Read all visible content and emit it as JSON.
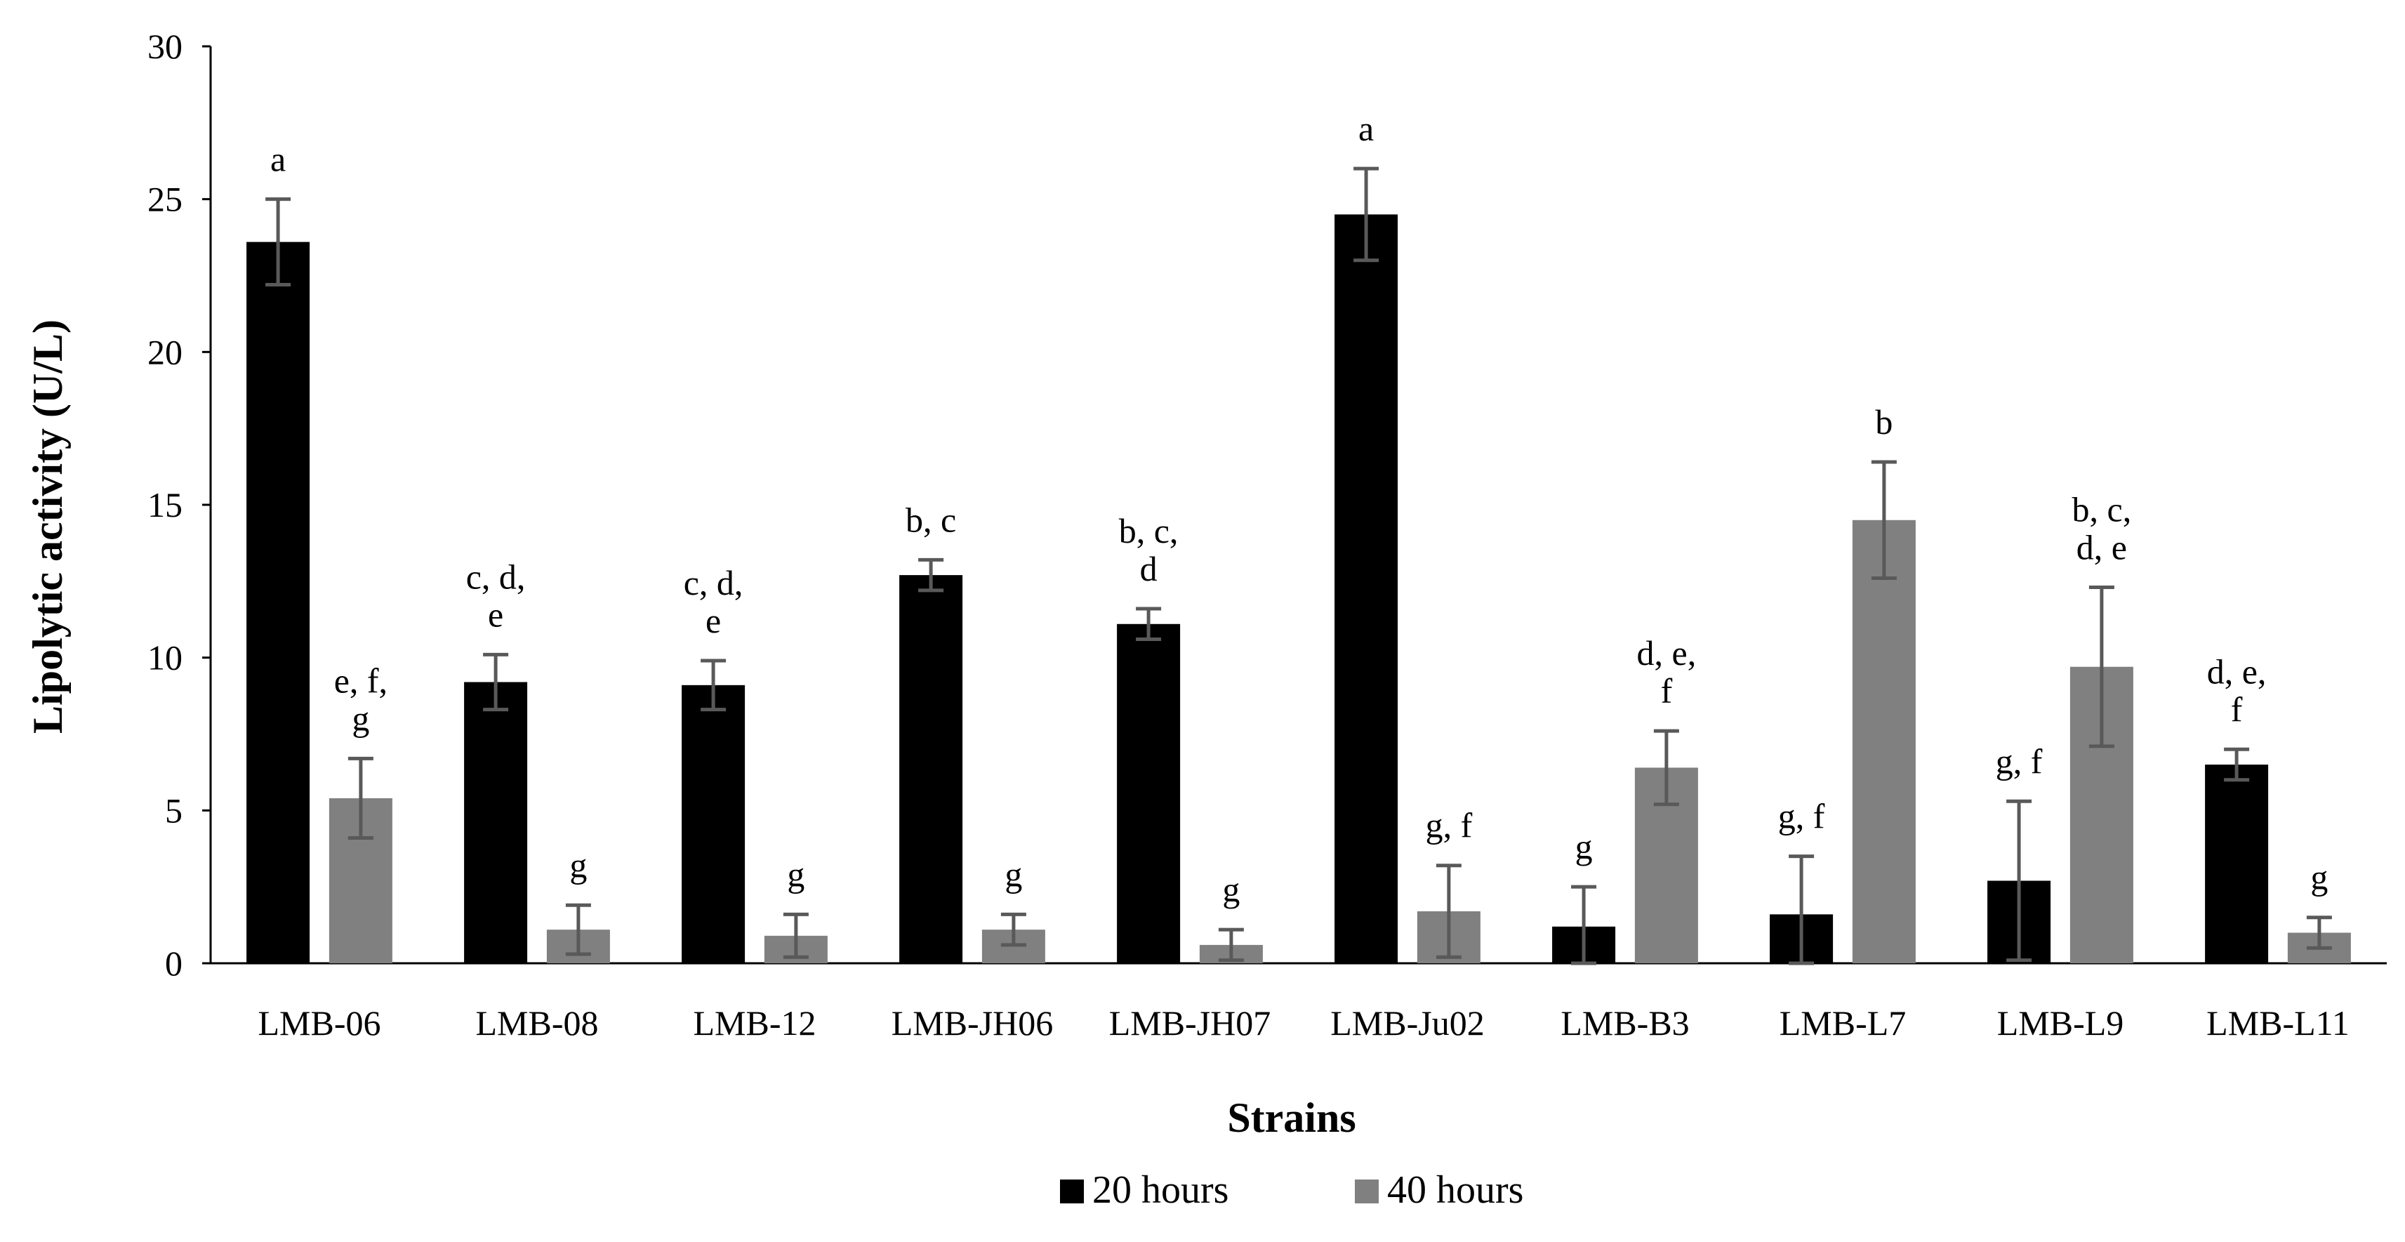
{
  "chart_data": {
    "type": "bar",
    "title": "",
    "xlabel": "Strains",
    "ylabel": "Lipolytic activity (U/L)",
    "ylim": [
      0,
      30
    ],
    "yticks": [
      "0",
      "5",
      "10",
      "15",
      "20",
      "25",
      "30"
    ],
    "grid": false,
    "legend_position": "bottom",
    "categories": [
      "LMB-06",
      "LMB-08",
      "LMB-12",
      "LMB-JH06",
      "LMB-JH07",
      "LMB-Ju02",
      "LMB-B3",
      "LMB-L7",
      "LMB-L9",
      "LMB-L11"
    ],
    "series": [
      {
        "name": "20 hours",
        "color": "#000000",
        "values": [
          23.6,
          9.2,
          9.1,
          12.7,
          11.1,
          24.5,
          1.2,
          1.6,
          2.7,
          6.5
        ],
        "errors": [
          1.4,
          0.9,
          0.8,
          0.5,
          0.5,
          1.5,
          1.3,
          1.9,
          2.6,
          0.5
        ],
        "labels": [
          [
            "a"
          ],
          [
            "c, d,",
            "e"
          ],
          [
            "c, d,",
            "e"
          ],
          [
            "b, c"
          ],
          [
            "b, c,",
            "d"
          ],
          [
            "a"
          ],
          [
            "g"
          ],
          [
            "g, f"
          ],
          [
            "g, f"
          ],
          [
            "d, e,",
            "f"
          ]
        ]
      },
      {
        "name": "40 hours",
        "color": "#808080",
        "values": [
          5.4,
          1.1,
          0.9,
          1.1,
          0.6,
          1.7,
          6.4,
          14.5,
          9.7,
          1.0
        ],
        "errors": [
          1.3,
          0.8,
          0.7,
          0.5,
          0.5,
          1.5,
          1.2,
          1.9,
          2.6,
          0.5
        ],
        "labels": [
          [
            "e, f,",
            "g"
          ],
          [
            "g"
          ],
          [
            "g"
          ],
          [
            "g"
          ],
          [
            "g"
          ],
          [
            "g, f"
          ],
          [
            "d, e,",
            "f"
          ],
          [
            "b"
          ],
          [
            "b, c,",
            "d, e"
          ],
          [
            "g"
          ]
        ]
      }
    ],
    "error_bar_color": "#595959"
  }
}
